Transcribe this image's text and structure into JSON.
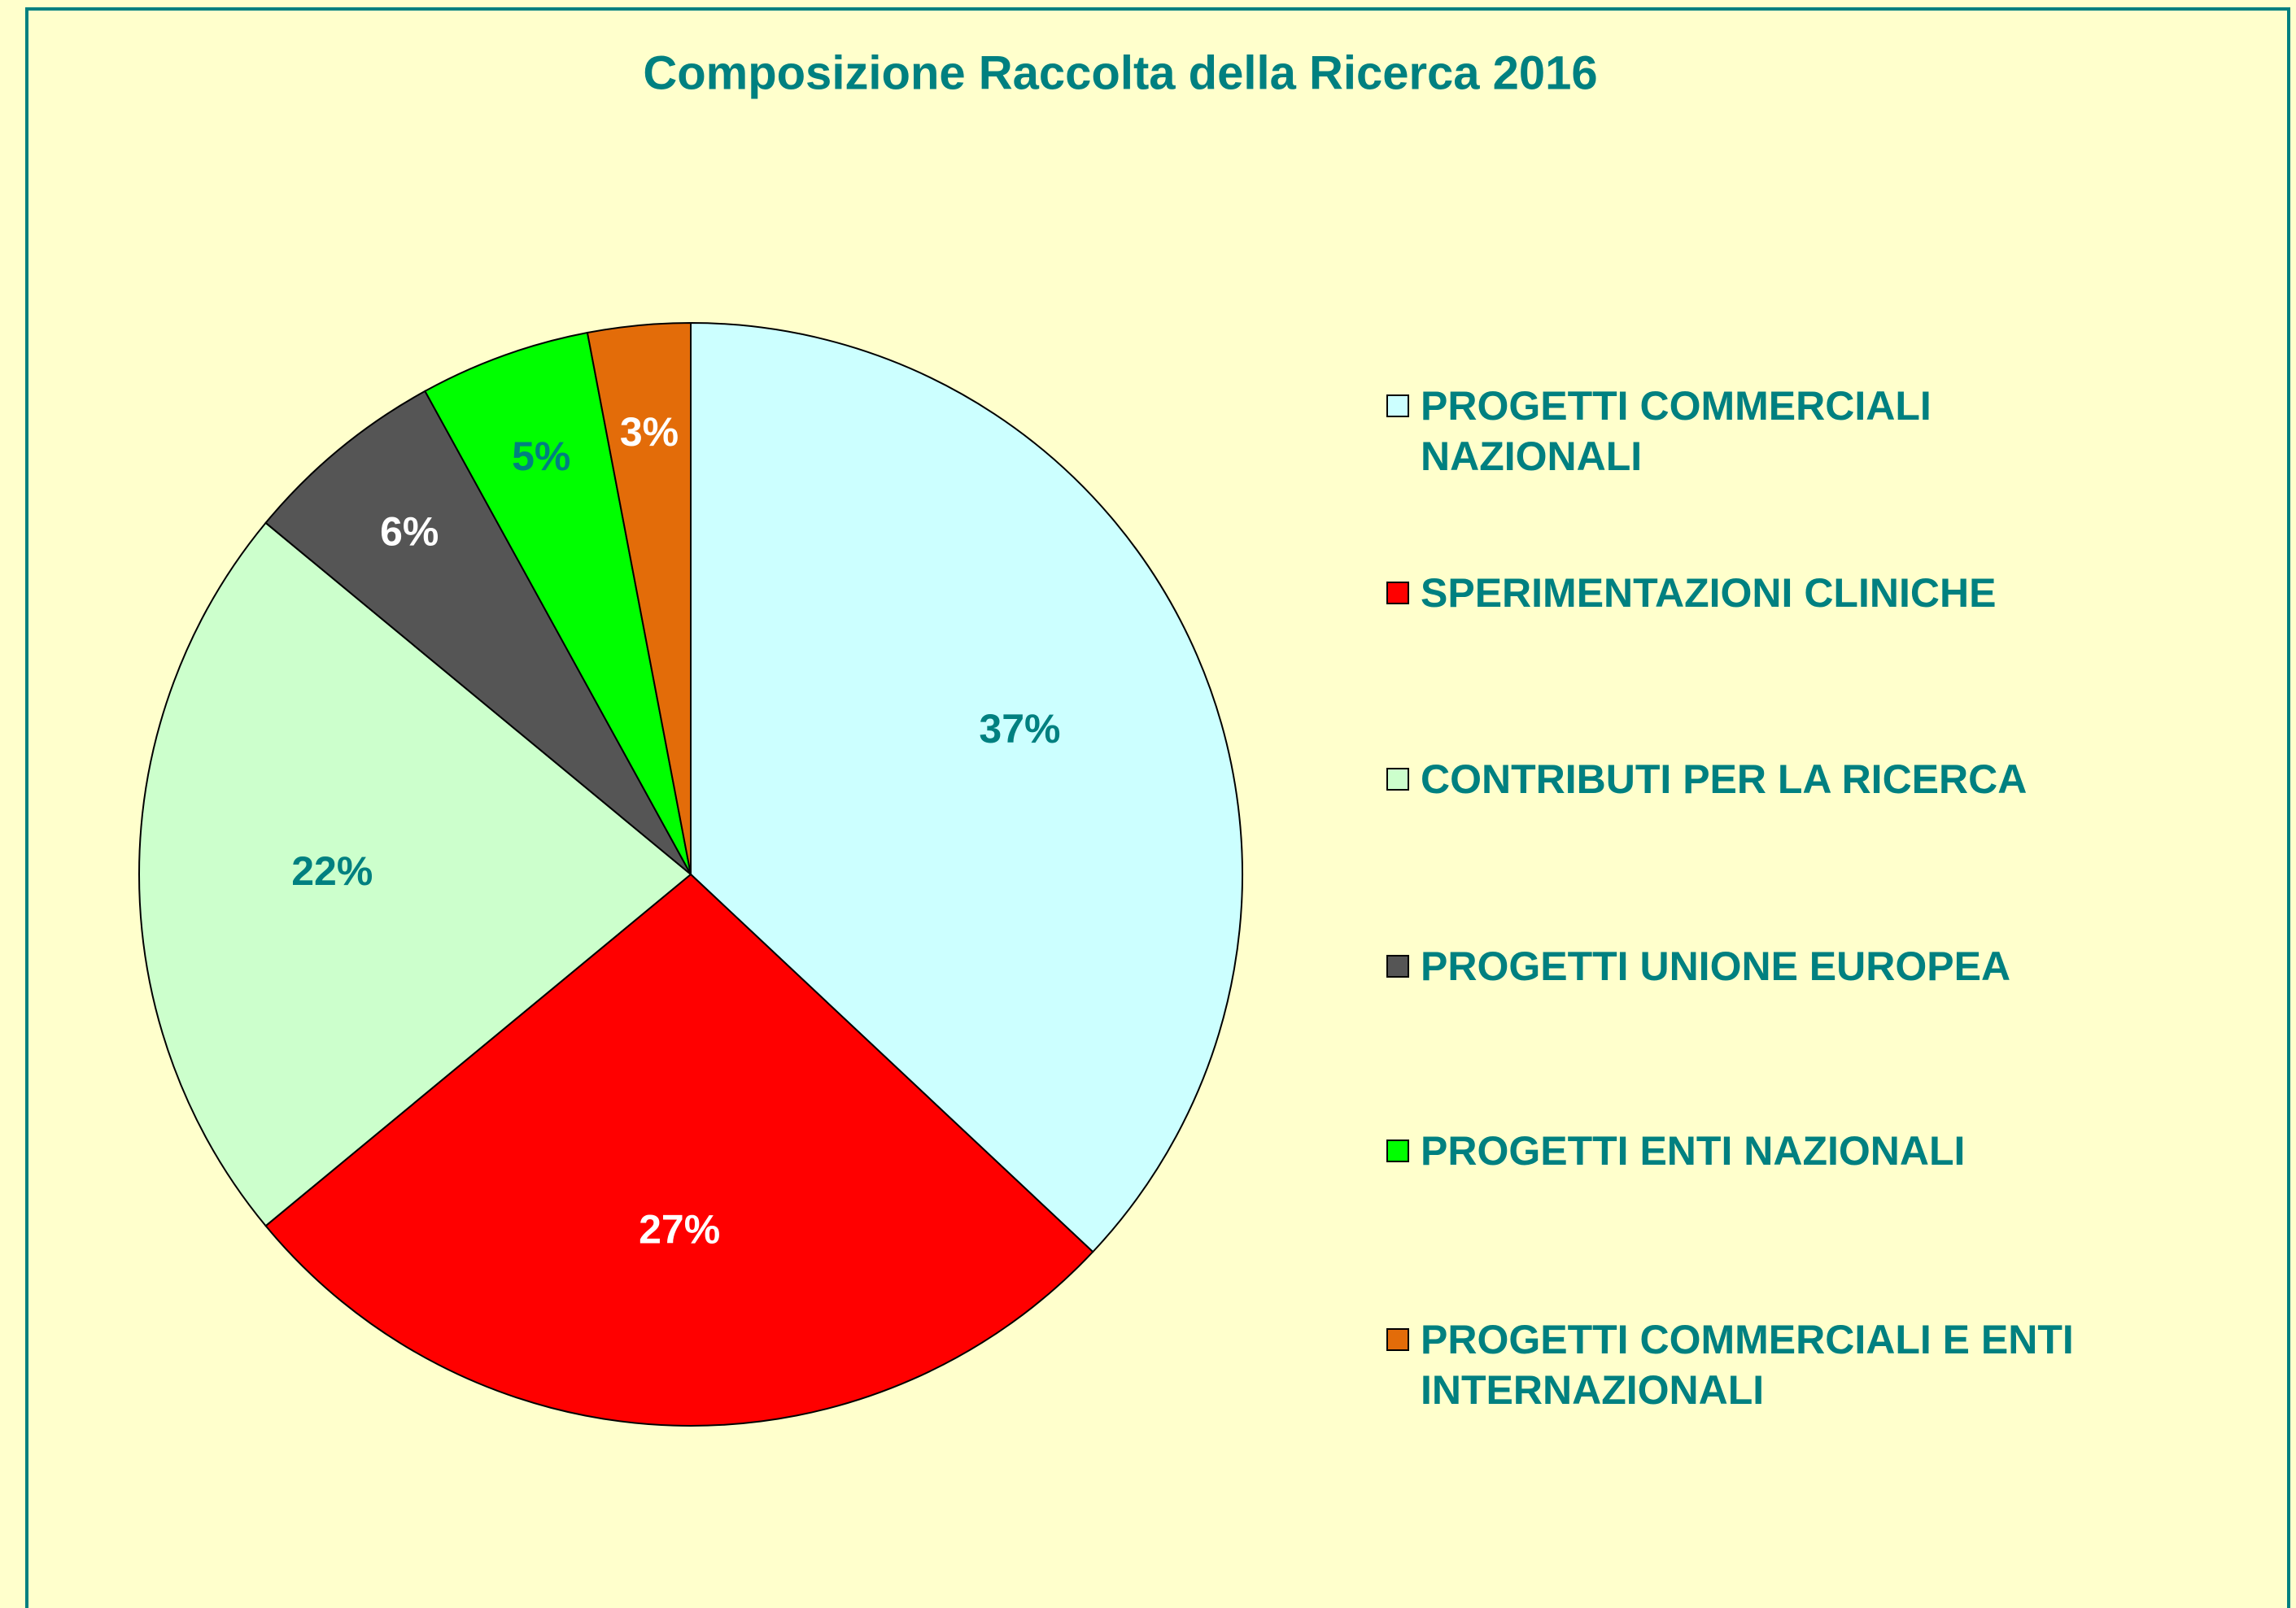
{
  "chart_data": {
    "type": "pie",
    "title": "Composizione Raccolta della Ricerca 2016",
    "categories": [
      "PROGETTI COMMERCIALI NAZIONALI",
      "SPERIMENTAZIONI CLINICHE",
      "CONTRIBUTI PER LA RICERCA",
      "PROGETTI UNIONE EUROPEA",
      "PROGETTI ENTI NAZIONALI",
      "PROGETTI COMMERCIALI E ENTI INTERNAZIONALI"
    ],
    "values": [
      37,
      27,
      22,
      6,
      5,
      3
    ],
    "value_labels": [
      "37%",
      "27%",
      "22%",
      "6%",
      "5%",
      "3%"
    ],
    "colors": [
      "#ccffff",
      "#ff0000",
      "#ccffcc",
      "#555555",
      "#00ff00",
      "#e36c09"
    ],
    "label_colors": [
      "#008080",
      "#ffffff",
      "#008080",
      "#ffffff",
      "#008080",
      "#ffffff"
    ],
    "legend": "right"
  }
}
